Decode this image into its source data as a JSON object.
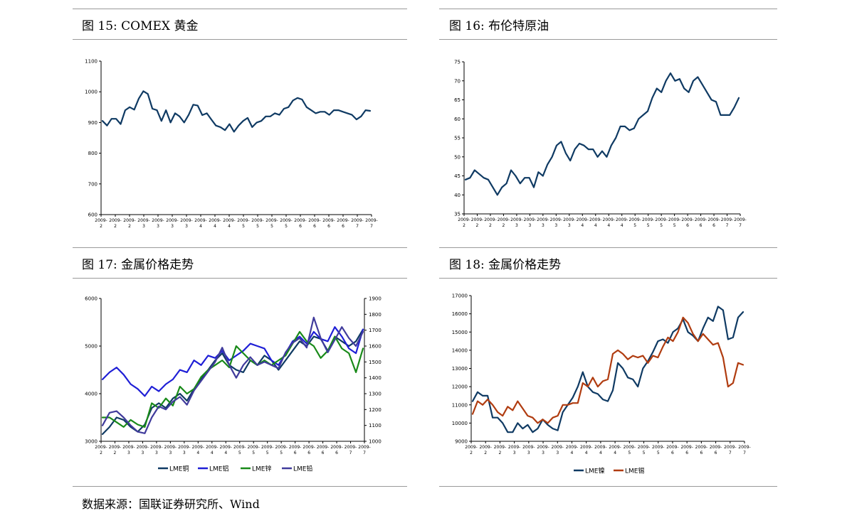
{
  "charts": [
    {
      "fig": "图 15:",
      "title": "COMEX 黄金",
      "chart_data": {
        "type": "line",
        "title": "COMEX 黄金",
        "ylim": [
          600,
          1100
        ],
        "yticks": [
          "600",
          "700",
          "800",
          "900",
          "1000",
          "1100"
        ],
        "x_tick_top": "2009-",
        "x_tick_months": [
          "2",
          "2",
          "2",
          "3",
          "3",
          "3",
          "3",
          "4",
          "4",
          "4",
          "5",
          "5",
          "5",
          "5",
          "6",
          "6",
          "6",
          "6",
          "7",
          "7"
        ],
        "series": [
          {
            "color": "#0f3a63",
            "values": [
              905,
              890,
              912,
              912,
              895,
              940,
              950,
              942,
              978,
              1002,
              993,
              945,
              940,
              905,
              940,
              900,
              930,
              920,
              900,
              925,
              958,
              955,
              924,
              930,
              910,
              890,
              885,
              875,
              895,
              870,
              890,
              905,
              915,
              885,
              900,
              905,
              920,
              920,
              930,
              925,
              945,
              950,
              972,
              980,
              975,
              950,
              940,
              930,
              935,
              935,
              925,
              940,
              940,
              935,
              930,
              925,
              910,
              920,
              940,
              938
            ]
          }
        ]
      }
    },
    {
      "fig": "图 16:",
      "title": "布伦特原油",
      "chart_data": {
        "type": "line",
        "title": "布伦特原油",
        "ylim": [
          35,
          75
        ],
        "yticks": [
          "35",
          "40",
          "45",
          "50",
          "55",
          "60",
          "65",
          "70",
          "75"
        ],
        "x_tick_top": "2009-",
        "x_tick_months": [
          "2",
          "2",
          "2",
          "2",
          "3",
          "3",
          "3",
          "3",
          "3",
          "4",
          "4",
          "4",
          "4",
          "5",
          "5",
          "5",
          "5",
          "6",
          "6",
          "6",
          "7",
          "7"
        ],
        "series": [
          {
            "color": "#0f3a63",
            "values": [
              44,
              44.5,
              46.5,
              45.5,
              44.5,
              44,
              42,
              40,
              42,
              43,
              46.5,
              45,
              43,
              44.5,
              44.5,
              42,
              46,
              45,
              48,
              50,
              53,
              54,
              51,
              49,
              52,
              53.5,
              53,
              52,
              52,
              50,
              51.5,
              50,
              53,
              55,
              58,
              58,
              57,
              57.5,
              60,
              61,
              62,
              65.5,
              68,
              67,
              70,
              72,
              70,
              70.5,
              68,
              67,
              70,
              71,
              69,
              67,
              65,
              64.5,
              61,
              61,
              61,
              63,
              65.5
            ]
          }
        ]
      }
    },
    {
      "fig": "图 17:",
      "title": "金属价格走势",
      "chart_data": {
        "type": "line",
        "title": "金属价格走势",
        "ylim": [
          3000,
          6000
        ],
        "y2lim": [
          1000,
          1900
        ],
        "yticks": [
          "3000",
          "4000",
          "5000",
          "6000"
        ],
        "y2ticks": [
          "1000",
          "1100",
          "1200",
          "1300",
          "1400",
          "1500",
          "1600",
          "1700",
          "1800",
          "1900"
        ],
        "x_tick_top": "2009-",
        "x_tick_months": [
          "2",
          "2",
          "3",
          "3",
          "3",
          "3",
          "3",
          "4",
          "4",
          "4",
          "5",
          "5",
          "5",
          "5",
          "6",
          "6",
          "6",
          "6",
          "7",
          "7"
        ],
        "legend": [
          "LME铜",
          "LME铝",
          "LME锌",
          "LME铅"
        ],
        "series": [
          {
            "name": "LME铜",
            "color": "#0f3a63",
            "axis": "left",
            "values": [
              3150,
              3300,
              3500,
              3450,
              3300,
              3200,
              3350,
              3700,
              3800,
              3700,
              3900,
              4000,
              3850,
              4100,
              4300,
              4500,
              4700,
              4850,
              4600,
              4500,
              4450,
              4700,
              4600,
              4800,
              4700,
              4500,
              4700,
              4900,
              5100,
              5000,
              5200,
              5150,
              4900,
              5200,
              5100,
              5000,
              5100,
              5350
            ]
          },
          {
            "name": "LME铝",
            "color": "#1f1fd6",
            "axis": "left",
            "values": [
              4300,
              4450,
              4550,
              4400,
              4200,
              4100,
              3950,
              4150,
              4050,
              4200,
              4300,
              4500,
              4450,
              4700,
              4600,
              4800,
              4750,
              4900,
              4700,
              4800,
              4900,
              5050,
              5000,
              4950,
              4700,
              4600,
              4850,
              5100,
              5200,
              5050,
              5300,
              5150,
              5100,
              5400,
              5200,
              4950,
              4850,
              5350
            ]
          },
          {
            "name": "LME锌",
            "color": "#198a19",
            "axis": "left",
            "values": [
              3500,
              3500,
              3400,
              3300,
              3450,
              3350,
              3300,
              3800,
              3700,
              3900,
              3750,
              4150,
              4000,
              4100,
              4350,
              4500,
              4600,
              4700,
              4550,
              5000,
              4850,
              4700,
              4600,
              4700,
              4600,
              4700,
              4800,
              5050,
              5300,
              5100,
              5000,
              4750,
              4900,
              5200,
              4950,
              4850,
              4450,
              4950
            ]
          },
          {
            "name": "LME铅",
            "color": "#403b9c",
            "axis": "right",
            "values": [
              1100,
              1180,
              1190,
              1150,
              1100,
              1060,
              1050,
              1150,
              1220,
              1200,
              1250,
              1280,
              1230,
              1320,
              1380,
              1440,
              1500,
              1590,
              1480,
              1400,
              1480,
              1530,
              1480,
              1500,
              1480,
              1460,
              1560,
              1620,
              1650,
              1590,
              1780,
              1650,
              1560,
              1640,
              1720,
              1650,
              1600,
              1690
            ]
          }
        ]
      }
    },
    {
      "fig": "图 18:",
      "title": "金属价格走势",
      "chart_data": {
        "type": "line",
        "title": "金属价格走势",
        "ylim": [
          9000,
          17000
        ],
        "yticks": [
          "9000",
          "10000",
          "11000",
          "12000",
          "13000",
          "14000",
          "15000",
          "16000",
          "17000"
        ],
        "x_tick_top": "2009-",
        "x_tick_months": [
          "2",
          "2",
          "2",
          "3",
          "3",
          "3",
          "3",
          "4",
          "4",
          "4",
          "4",
          "5",
          "5",
          "5",
          "6",
          "6",
          "6",
          "6",
          "7",
          "7"
        ],
        "legend": [
          "LME镍",
          "LME锡"
        ],
        "series": [
          {
            "name": "LME镍",
            "color": "#0f3a63",
            "values": [
              11200,
              11700,
              11500,
              11500,
              10300,
              10300,
              10000,
              9500,
              9500,
              10000,
              9700,
              9900,
              9500,
              9700,
              10200,
              9900,
              9700,
              9600,
              10600,
              11000,
              11400,
              12000,
              12800,
              12000,
              11700,
              11600,
              11300,
              11200,
              11800,
              13300,
              13000,
              12500,
              12400,
              12000,
              13000,
              13400,
              13900,
              14500,
              14600,
              14400,
              15000,
              15200,
              15700,
              15000,
              14800,
              14500,
              15200,
              15800,
              15600,
              16400,
              16200,
              14600,
              14700,
              15800,
              16100
            ]
          },
          {
            "name": "LME锡",
            "color": "#b03c10",
            "values": [
              10500,
              11200,
              11000,
              11300,
              11000,
              10600,
              10400,
              10900,
              10700,
              11200,
              10800,
              10400,
              10300,
              10000,
              10200,
              10000,
              10300,
              10400,
              11000,
              11000,
              11100,
              11100,
              12200,
              12000,
              12500,
              12000,
              12300,
              12400,
              13800,
              14000,
              13800,
              13500,
              13700,
              13600,
              13700,
              13300,
              13700,
              13600,
              14200,
              14700,
              14500,
              15000,
              15800,
              15500,
              14900,
              14500,
              14900,
              14600,
              14300,
              14400,
              13600,
              12000,
              12200,
              13300,
              13200
            ]
          }
        ]
      }
    }
  ],
  "source": "数据来源：国联证券研究所、Wind"
}
